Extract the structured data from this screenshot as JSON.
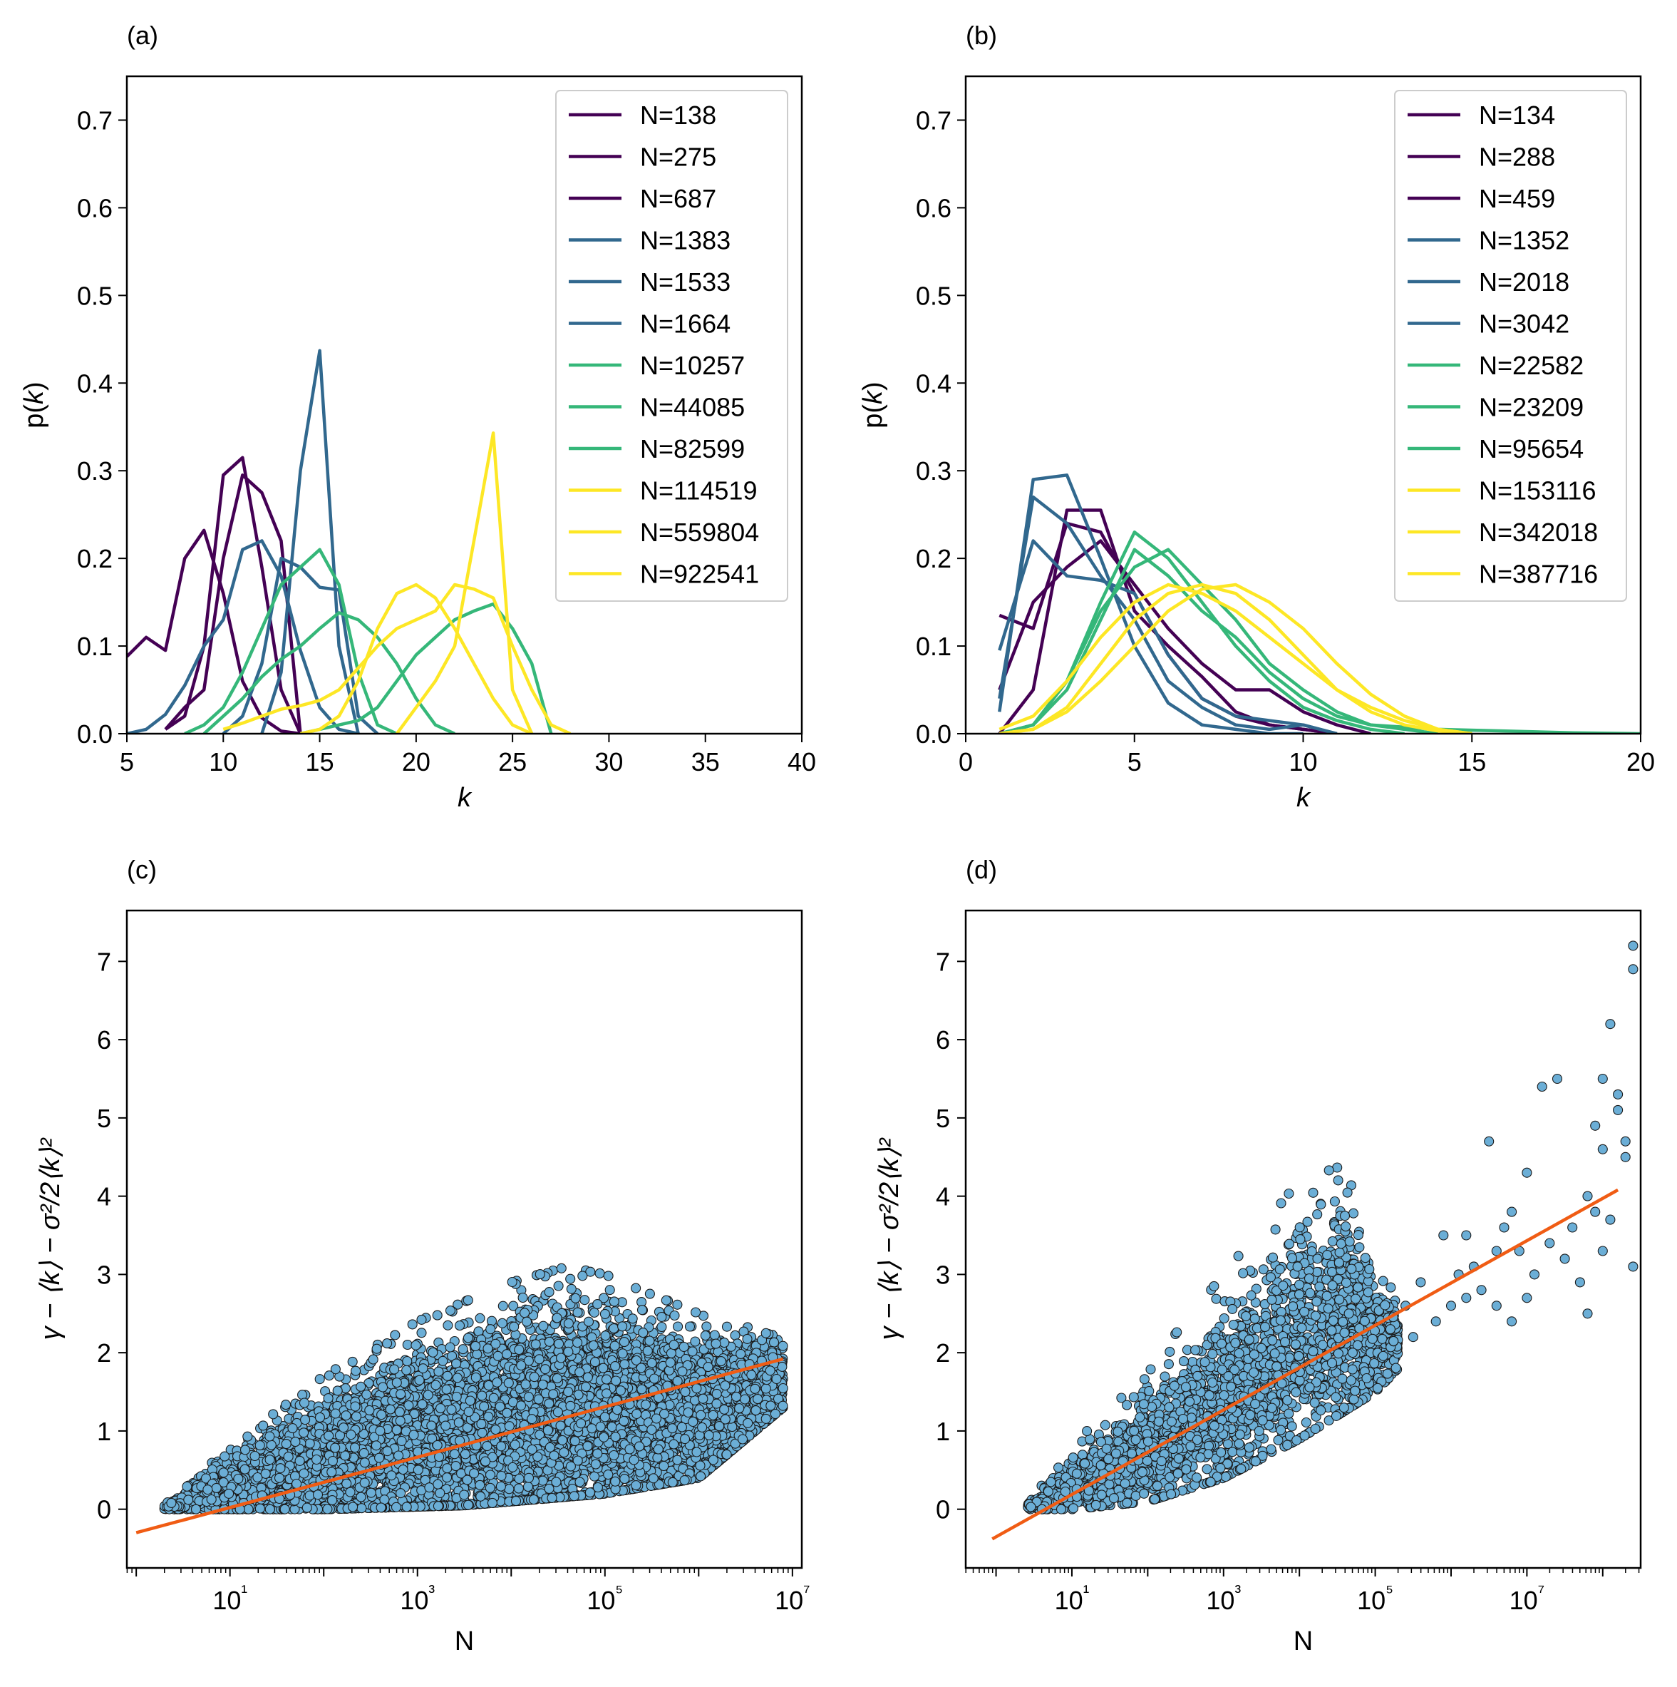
{
  "chart_data": [
    {
      "panel": "(a)",
      "type": "line",
      "xlabel": "k",
      "ylabel": "p(k)",
      "xlim": [
        5,
        40
      ],
      "ylim": [
        0,
        0.75
      ],
      "xticks": [
        "5",
        "10",
        "15",
        "20",
        "25",
        "30",
        "35",
        "40"
      ],
      "yticks": [
        "0.0",
        "0.1",
        "0.2",
        "0.3",
        "0.4",
        "0.5",
        "0.6",
        "0.7"
      ],
      "legend_position": "upper right",
      "series": [
        {
          "name": "N=138",
          "color": "#440154",
          "x": [
            5,
            6,
            7,
            8,
            9,
            10,
            11,
            12,
            13,
            14
          ],
          "y": [
            0.088,
            0.11,
            0.095,
            0.2,
            0.232,
            0.16,
            0.06,
            0.018,
            0.003,
            0
          ]
        },
        {
          "name": "N=275",
          "color": "#440154",
          "x": [
            7,
            8,
            9,
            10,
            11,
            12,
            13,
            14
          ],
          "y": [
            0.005,
            0.02,
            0.1,
            0.295,
            0.315,
            0.19,
            0.05,
            0
          ]
        },
        {
          "name": "N=687",
          "color": "#440154",
          "x": [
            7,
            8,
            9,
            10,
            11,
            12,
            13,
            14
          ],
          "y": [
            0.005,
            0.03,
            0.05,
            0.2,
            0.295,
            0.275,
            0.22,
            0
          ]
        },
        {
          "name": "N=1383",
          "color": "#31688e",
          "x": [
            5,
            6,
            7,
            8,
            9,
            10,
            11,
            12,
            13,
            14,
            15,
            16,
            17
          ],
          "y": [
            0,
            0.005,
            0.022,
            0.055,
            0.1,
            0.13,
            0.21,
            0.22,
            0.18,
            0.095,
            0.03,
            0.005,
            0
          ]
        },
        {
          "name": "N=1533",
          "color": "#31688e",
          "x": [
            12,
            13,
            14,
            15,
            16,
            17
          ],
          "y": [
            0,
            0.07,
            0.3,
            0.437,
            0.1,
            0
          ]
        },
        {
          "name": "N=1664",
          "color": "#31688e",
          "x": [
            10,
            11,
            12,
            13,
            14,
            15,
            16,
            17,
            18
          ],
          "y": [
            0,
            0.02,
            0.08,
            0.2,
            0.19,
            0.167,
            0.164,
            0.02,
            0
          ]
        },
        {
          "name": "N=10257",
          "color": "#35b779",
          "x": [
            8,
            9,
            10,
            11,
            12,
            13,
            14,
            15,
            16,
            17,
            18,
            19
          ],
          "y": [
            0,
            0.01,
            0.03,
            0.07,
            0.12,
            0.17,
            0.19,
            0.21,
            0.17,
            0.07,
            0.01,
            0
          ]
        },
        {
          "name": "N=44085",
          "color": "#35b779",
          "x": [
            9,
            10,
            11,
            12,
            13,
            14,
            15,
            16,
            17,
            18,
            19,
            20,
            21,
            22
          ],
          "y": [
            0,
            0.02,
            0.04,
            0.065,
            0.085,
            0.1,
            0.12,
            0.138,
            0.13,
            0.11,
            0.08,
            0.04,
            0.01,
            0
          ]
        },
        {
          "name": "N=82599",
          "color": "#35b779",
          "x": [
            14,
            15,
            16,
            17,
            18,
            19,
            20,
            21,
            22,
            23,
            24,
            25,
            26,
            27
          ],
          "y": [
            0,
            0.005,
            0.01,
            0.015,
            0.03,
            0.06,
            0.09,
            0.11,
            0.13,
            0.14,
            0.148,
            0.12,
            0.08,
            0
          ]
        },
        {
          "name": "N=114519",
          "color": "#fde725",
          "x": [
            10,
            11,
            12,
            13,
            14,
            15,
            16,
            17,
            18,
            19,
            20,
            21,
            22,
            23,
            24,
            25,
            26,
            27,
            28
          ],
          "y": [
            0.005,
            0.012,
            0.02,
            0.028,
            0.032,
            0.038,
            0.05,
            0.075,
            0.1,
            0.12,
            0.13,
            0.14,
            0.17,
            0.165,
            0.155,
            0.1,
            0.05,
            0.01,
            0
          ]
        },
        {
          "name": "N=559804",
          "color": "#fde725",
          "x": [
            14,
            15,
            16,
            17,
            18,
            19,
            20,
            21,
            22,
            23,
            24,
            25,
            26
          ],
          "y": [
            0,
            0.005,
            0.02,
            0.06,
            0.12,
            0.16,
            0.17,
            0.155,
            0.12,
            0.08,
            0.04,
            0.01,
            0
          ]
        },
        {
          "name": "N=922541",
          "color": "#fde725",
          "x": [
            19,
            20,
            21,
            22,
            23,
            24,
            25,
            26
          ],
          "y": [
            0,
            0.03,
            0.06,
            0.1,
            0.22,
            0.343,
            0.05,
            0
          ]
        }
      ]
    },
    {
      "panel": "(b)",
      "type": "line",
      "xlabel": "k",
      "ylabel": "p(k)",
      "xlim": [
        0,
        20
      ],
      "ylim": [
        0,
        0.75
      ],
      "xticks": [
        "0",
        "5",
        "10",
        "15",
        "20"
      ],
      "yticks": [
        "0.0",
        "0.1",
        "0.2",
        "0.3",
        "0.4",
        "0.5",
        "0.6",
        "0.7"
      ],
      "legend_position": "upper right",
      "series": [
        {
          "name": "N=134",
          "color": "#440154",
          "x": [
            1,
            2,
            3,
            4,
            5,
            6,
            7,
            8,
            9,
            10,
            11
          ],
          "y": [
            0.135,
            0.12,
            0.24,
            0.23,
            0.16,
            0.09,
            0.04,
            0.02,
            0.01,
            0.005,
            0
          ]
        },
        {
          "name": "N=288",
          "color": "#440154",
          "x": [
            1,
            2,
            3,
            4,
            5,
            6,
            7,
            8,
            9,
            10,
            11,
            12
          ],
          "y": [
            0.05,
            0.15,
            0.19,
            0.22,
            0.17,
            0.12,
            0.08,
            0.05,
            0.05,
            0.025,
            0.01,
            0
          ]
        },
        {
          "name": "N=459",
          "color": "#440154",
          "x": [
            1,
            2,
            3,
            4,
            5,
            6,
            7,
            8,
            9,
            10,
            11
          ],
          "y": [
            0,
            0.05,
            0.255,
            0.255,
            0.14,
            0.1,
            0.065,
            0.025,
            0.01,
            0.005,
            0
          ]
        },
        {
          "name": "N=1352",
          "color": "#31688e",
          "x": [
            1,
            2,
            3,
            4,
            5,
            6,
            7,
            8,
            9,
            10
          ],
          "y": [
            0.025,
            0.29,
            0.295,
            0.2,
            0.1,
            0.035,
            0.01,
            0.005,
            0,
            0
          ]
        },
        {
          "name": "N=2018",
          "color": "#31688e",
          "x": [
            1,
            2,
            3,
            4,
            5,
            6,
            7,
            8,
            9,
            10,
            11
          ],
          "y": [
            0.04,
            0.27,
            0.24,
            0.18,
            0.13,
            0.06,
            0.03,
            0.01,
            0.005,
            0.01,
            0
          ]
        },
        {
          "name": "N=3042",
          "color": "#31688e",
          "x": [
            1,
            2,
            3,
            4,
            5,
            6,
            7,
            8,
            9,
            10,
            11
          ],
          "y": [
            0.095,
            0.22,
            0.18,
            0.175,
            0.16,
            0.09,
            0.04,
            0.02,
            0.015,
            0.01,
            0
          ]
        },
        {
          "name": "N=22582",
          "color": "#35b779",
          "x": [
            1,
            2,
            3,
            4,
            5,
            6,
            7,
            8,
            9,
            10,
            11,
            12,
            14,
            16,
            18,
            20
          ],
          "y": [
            0,
            0.01,
            0.05,
            0.13,
            0.21,
            0.18,
            0.14,
            0.11,
            0.07,
            0.04,
            0.02,
            0.01,
            0.005,
            0.003,
            0.001,
            0
          ]
        },
        {
          "name": "N=23209",
          "color": "#35b779",
          "x": [
            1,
            2,
            3,
            4,
            5,
            6,
            7,
            8,
            9,
            10,
            11,
            12,
            13
          ],
          "y": [
            0,
            0.01,
            0.06,
            0.15,
            0.23,
            0.2,
            0.15,
            0.1,
            0.06,
            0.03,
            0.015,
            0.005,
            0
          ]
        },
        {
          "name": "N=95654",
          "color": "#35b779",
          "x": [
            1,
            2,
            3,
            4,
            5,
            6,
            7,
            8,
            9,
            10,
            11,
            12,
            13,
            14
          ],
          "y": [
            0,
            0.01,
            0.06,
            0.14,
            0.19,
            0.21,
            0.17,
            0.13,
            0.08,
            0.05,
            0.025,
            0.01,
            0.005,
            0
          ]
        },
        {
          "name": "N=153116",
          "color": "#fde725",
          "x": [
            1,
            2,
            3,
            4,
            5,
            6,
            7,
            8,
            9,
            10,
            11,
            12,
            13,
            14,
            15
          ],
          "y": [
            0.005,
            0.02,
            0.06,
            0.11,
            0.15,
            0.17,
            0.16,
            0.14,
            0.11,
            0.08,
            0.05,
            0.03,
            0.015,
            0.005,
            0
          ]
        },
        {
          "name": "N=342018",
          "color": "#fde725",
          "x": [
            1,
            2,
            3,
            4,
            5,
            6,
            7,
            8,
            9,
            10,
            11,
            12,
            13,
            14,
            15
          ],
          "y": [
            0,
            0.005,
            0.03,
            0.08,
            0.13,
            0.16,
            0.17,
            0.16,
            0.13,
            0.09,
            0.05,
            0.025,
            0.01,
            0.003,
            0
          ]
        },
        {
          "name": "N=387716",
          "color": "#fde725",
          "x": [
            1,
            2,
            3,
            4,
            5,
            6,
            7,
            8,
            9,
            10,
            11,
            12,
            13,
            14,
            15
          ],
          "y": [
            0,
            0.005,
            0.025,
            0.06,
            0.1,
            0.14,
            0.165,
            0.17,
            0.15,
            0.12,
            0.08,
            0.045,
            0.02,
            0.005,
            0
          ]
        }
      ]
    },
    {
      "panel": "(c)",
      "type": "scatter",
      "xlabel": "N",
      "ylabel": "γ − ⟨k⟩ − σ²/2⟨k⟩²",
      "xscale": "log",
      "xlim_log10": [
        -0.1,
        7.1
      ],
      "ylim": [
        -0.75,
        7.65
      ],
      "xticks": [
        "10¹",
        "10³",
        "10⁵",
        "10⁷"
      ],
      "yticks": [
        "0",
        "1",
        "2",
        "3",
        "4",
        "5",
        "6",
        "7"
      ],
      "point_color": "#6baed6",
      "fit_color": "#f05c14",
      "fit_line": {
        "log10_x": [
          0.0,
          6.9
        ],
        "y": [
          -0.3,
          1.92
        ]
      },
      "point_cloud": {
        "log10_N_range": [
          0.3,
          6.9
        ],
        "min_bound": [
          [
            0.3,
            0.0
          ],
          [
            2.0,
            0.0
          ],
          [
            3.5,
            0.05
          ],
          [
            5.0,
            0.2
          ],
          [
            6.0,
            0.4
          ],
          [
            6.9,
            1.3
          ]
        ],
        "max_bound": [
          [
            0.3,
            0.05
          ],
          [
            1.0,
            0.8
          ],
          [
            2.0,
            1.7
          ],
          [
            3.0,
            2.4
          ],
          [
            4.0,
            2.9
          ],
          [
            4.6,
            3.1
          ],
          [
            5.0,
            3.0
          ],
          [
            6.0,
            2.5
          ],
          [
            6.9,
            2.2
          ]
        ],
        "count_approx": 9000
      }
    },
    {
      "panel": "(d)",
      "type": "scatter",
      "xlabel": "N",
      "ylabel": "γ − ⟨k⟩ − σ²/2⟨k⟩²",
      "xscale": "log",
      "xlim_log10": [
        -0.4,
        8.5
      ],
      "ylim": [
        -0.75,
        7.65
      ],
      "xticks": [
        "10¹",
        "10³",
        "10⁵",
        "10⁷"
      ],
      "yticks": [
        "0",
        "1",
        "2",
        "3",
        "4",
        "5",
        "6",
        "7"
      ],
      "point_color": "#6baed6",
      "fit_color": "#f05c14",
      "fit_line": {
        "log10_x": [
          -0.05,
          8.2
        ],
        "y": [
          -0.38,
          4.08
        ]
      },
      "point_cloud": {
        "log10_N_range": [
          0.4,
          5.3
        ],
        "min_bound": [
          [
            0.4,
            0.0
          ],
          [
            1.0,
            0.0
          ],
          [
            2.0,
            0.1
          ],
          [
            3.0,
            0.4
          ],
          [
            4.0,
            0.9
          ],
          [
            5.0,
            1.5
          ],
          [
            5.3,
            1.8
          ]
        ],
        "max_bound": [
          [
            0.4,
            0.05
          ],
          [
            1.0,
            0.8
          ],
          [
            2.0,
            1.8
          ],
          [
            3.0,
            3.0
          ],
          [
            4.0,
            4.2
          ],
          [
            4.6,
            4.4
          ],
          [
            5.0,
            3.2
          ],
          [
            5.3,
            2.8
          ]
        ],
        "count_approx": 2500
      },
      "outliers": [
        [
          5.2,
          2.3
        ],
        [
          5.4,
          2.6
        ],
        [
          5.5,
          2.2
        ],
        [
          5.6,
          2.9
        ],
        [
          5.8,
          2.4
        ],
        [
          5.9,
          3.5
        ],
        [
          6.0,
          2.6
        ],
        [
          6.1,
          3.0
        ],
        [
          6.2,
          2.7
        ],
        [
          6.3,
          3.1
        ],
        [
          6.4,
          2.8
        ],
        [
          6.5,
          4.7
        ],
        [
          6.6,
          2.6
        ],
        [
          6.6,
          3.3
        ],
        [
          6.7,
          3.6
        ],
        [
          6.8,
          3.8
        ],
        [
          6.9,
          3.3
        ],
        [
          7.0,
          4.3
        ],
        [
          7.1,
          3.0
        ],
        [
          7.2,
          5.4
        ],
        [
          7.3,
          3.4
        ],
        [
          7.4,
          5.5
        ],
        [
          7.5,
          3.2
        ],
        [
          7.6,
          3.6
        ],
        [
          7.7,
          2.9
        ],
        [
          7.8,
          4.0
        ],
        [
          7.8,
          2.5
        ],
        [
          7.9,
          4.9
        ],
        [
          7.9,
          3.8
        ],
        [
          8.0,
          5.5
        ],
        [
          8.0,
          4.6
        ],
        [
          8.0,
          3.3
        ],
        [
          8.1,
          3.7
        ],
        [
          8.1,
          6.2
        ],
        [
          8.2,
          5.3
        ],
        [
          8.2,
          5.1
        ],
        [
          8.3,
          4.5
        ],
        [
          8.3,
          4.7
        ],
        [
          8.4,
          7.2
        ],
        [
          8.4,
          6.9
        ],
        [
          8.4,
          3.1
        ],
        [
          7.0,
          2.7
        ],
        [
          6.8,
          2.4
        ],
        [
          6.2,
          3.5
        ]
      ]
    }
  ]
}
